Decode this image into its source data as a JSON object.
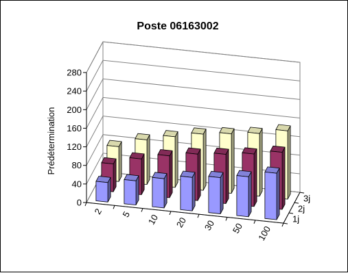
{
  "chart_data": {
    "type": "bar",
    "subtype": "3d-clustered-series",
    "title": "Poste 06163002",
    "xlabel": "",
    "ylabel": "Prédétermination",
    "categories": [
      "2",
      "5",
      "10",
      "20",
      "30",
      "50",
      "100"
    ],
    "series": [
      {
        "name": "1j",
        "values": [
          42,
          52,
          63,
          72,
          78,
          86,
          100
        ],
        "color": "#9999FF"
      },
      {
        "name": "2j",
        "values": [
          60,
          77,
          90,
          100,
          106,
          113,
          123
        ],
        "color": "#993366"
      },
      {
        "name": "3j",
        "values": [
          75,
          96,
          109,
          121,
          128,
          135,
          147
        ],
        "color": "#FFFFCC"
      }
    ],
    "yticks": [
      0,
      40,
      80,
      120,
      160,
      200,
      240,
      280
    ],
    "ylim": [
      0,
      280
    ],
    "grid": true,
    "legend": "none"
  }
}
